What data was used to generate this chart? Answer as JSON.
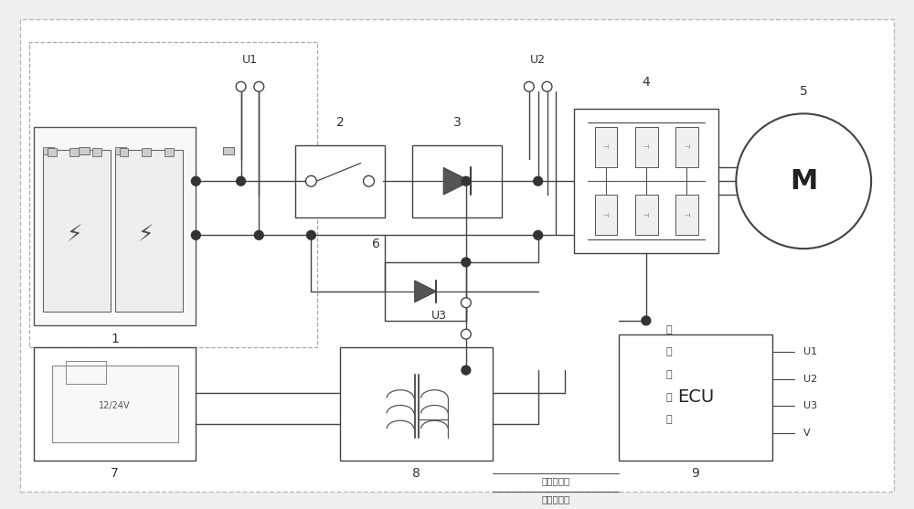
{
  "bg_color": "#f0f0f0",
  "fig_bg": "#f0f0f0",
  "lc": "#444444",
  "figsize": [
    10.0,
    5.57
  ],
  "dpi": 100,
  "xlim": [
    0,
    100
  ],
  "ylim": [
    0,
    55.7
  ]
}
